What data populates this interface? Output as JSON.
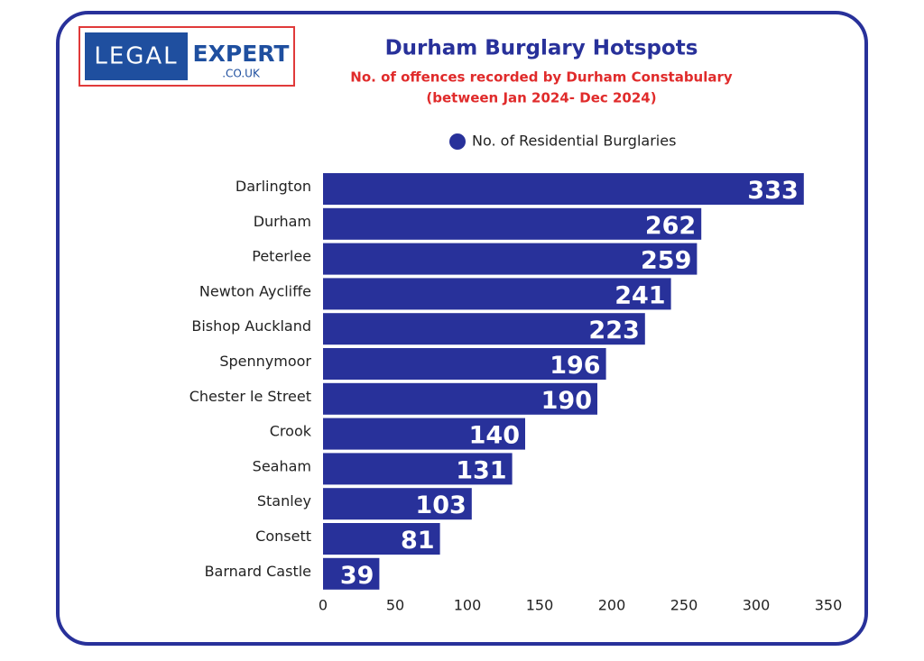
{
  "logo": {
    "left": "LEGAL",
    "right": "EXPERT",
    "sub": ".CO.UK"
  },
  "chart_data": {
    "type": "barh",
    "title": "Durham Burglary Hotspots",
    "subtitle": "No. of offences recorded by Durham Constabulary",
    "subtitle2": "(between Jan 2024- Dec 2024)",
    "categories": [
      "Darlington",
      "Durham",
      "Peterlee",
      "Newton Aycliffe",
      "Bishop Auckland",
      "Spennymoor",
      "Chester le Street",
      "Crook",
      "Seaham",
      "Stanley",
      "Consett",
      "Barnard Castle"
    ],
    "series": [
      {
        "name": "No. of Residential Burglaries",
        "color": "#28319a",
        "values": [
          333,
          262,
          259,
          241,
          223,
          196,
          190,
          140,
          131,
          103,
          81,
          39
        ]
      }
    ],
    "xlim": [
      0,
      350
    ],
    "xticks": [
      0,
      50,
      100,
      150,
      200,
      250,
      300,
      350
    ],
    "legend": "top",
    "grid": false
  }
}
